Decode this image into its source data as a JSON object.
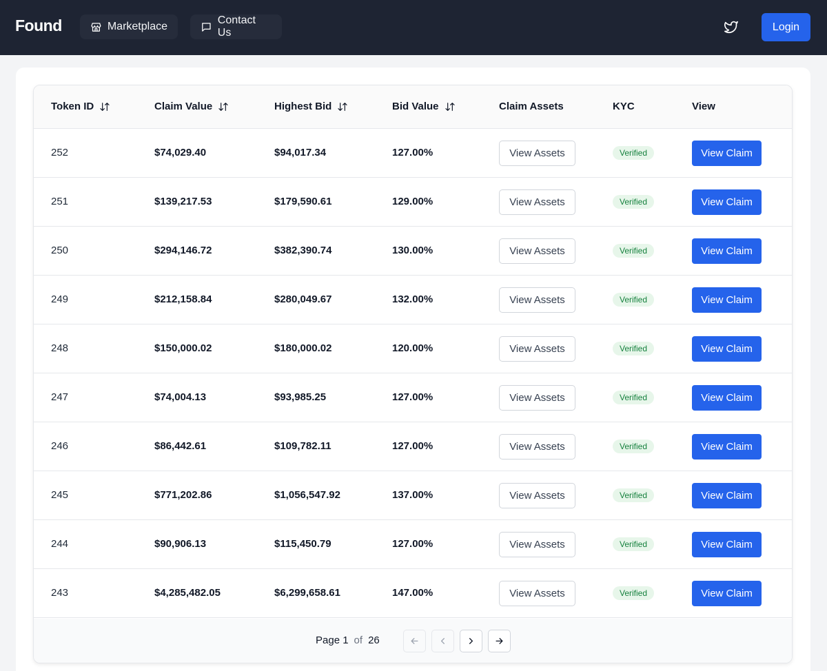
{
  "header": {
    "brand": "Found",
    "nav": [
      {
        "label": "Marketplace",
        "icon": "store-icon"
      },
      {
        "label": "Contact Us",
        "icon": "message-icon"
      }
    ],
    "social_icon": "twitter-icon",
    "login_label": "Login"
  },
  "table": {
    "columns": [
      {
        "label": "Token ID",
        "sortable": true
      },
      {
        "label": "Claim Value",
        "sortable": true
      },
      {
        "label": "Highest Bid",
        "sortable": true
      },
      {
        "label": "Bid Value",
        "sortable": true
      },
      {
        "label": "Claim Assets",
        "sortable": false
      },
      {
        "label": "KYC",
        "sortable": false
      },
      {
        "label": "View",
        "sortable": false
      }
    ],
    "rows": [
      {
        "token_id": "252",
        "claim_value": "$74,029.40",
        "highest_bid": "$94,017.34",
        "bid_value": "127.00%",
        "assets_label": "View Assets",
        "kyc": "Verified",
        "view_label": "View Claim"
      },
      {
        "token_id": "251",
        "claim_value": "$139,217.53",
        "highest_bid": "$179,590.61",
        "bid_value": "129.00%",
        "assets_label": "View Assets",
        "kyc": "Verified",
        "view_label": "View Claim"
      },
      {
        "token_id": "250",
        "claim_value": "$294,146.72",
        "highest_bid": "$382,390.74",
        "bid_value": "130.00%",
        "assets_label": "View Assets",
        "kyc": "Verified",
        "view_label": "View Claim"
      },
      {
        "token_id": "249",
        "claim_value": "$212,158.84",
        "highest_bid": "$280,049.67",
        "bid_value": "132.00%",
        "assets_label": "View Assets",
        "kyc": "Verified",
        "view_label": "View Claim"
      },
      {
        "token_id": "248",
        "claim_value": "$150,000.02",
        "highest_bid": "$180,000.02",
        "bid_value": "120.00%",
        "assets_label": "View Assets",
        "kyc": "Verified",
        "view_label": "View Claim"
      },
      {
        "token_id": "247",
        "claim_value": "$74,004.13",
        "highest_bid": "$93,985.25",
        "bid_value": "127.00%",
        "assets_label": "View Assets",
        "kyc": "Verified",
        "view_label": "View Claim"
      },
      {
        "token_id": "246",
        "claim_value": "$86,442.61",
        "highest_bid": "$109,782.11",
        "bid_value": "127.00%",
        "assets_label": "View Assets",
        "kyc": "Verified",
        "view_label": "View Claim"
      },
      {
        "token_id": "245",
        "claim_value": "$771,202.86",
        "highest_bid": "$1,056,547.92",
        "bid_value": "137.00%",
        "assets_label": "View Assets",
        "kyc": "Verified",
        "view_label": "View Claim"
      },
      {
        "token_id": "244",
        "claim_value": "$90,906.13",
        "highest_bid": "$115,450.79",
        "bid_value": "127.00%",
        "assets_label": "View Assets",
        "kyc": "Verified",
        "view_label": "View Claim"
      },
      {
        "token_id": "243",
        "claim_value": "$4,285,482.05",
        "highest_bid": "$6,299,658.61",
        "bid_value": "147.00%",
        "assets_label": "View Assets",
        "kyc": "Verified",
        "view_label": "View Claim"
      }
    ]
  },
  "pagination": {
    "page_label": "Page 1",
    "of_label": "of",
    "total_pages": "26",
    "buttons": [
      {
        "name": "first-page-button",
        "icon": "arrow-left-icon",
        "enabled": false
      },
      {
        "name": "prev-page-button",
        "icon": "chevron-left-icon",
        "enabled": false
      },
      {
        "name": "next-page-button",
        "icon": "chevron-right-icon",
        "enabled": true
      },
      {
        "name": "last-page-button",
        "icon": "arrow-right-icon",
        "enabled": true
      }
    ]
  },
  "colors": {
    "topbar": "#1e2433",
    "accent": "#2563eb",
    "verified_bg": "#e7f6ea",
    "verified_text": "#15803d"
  }
}
